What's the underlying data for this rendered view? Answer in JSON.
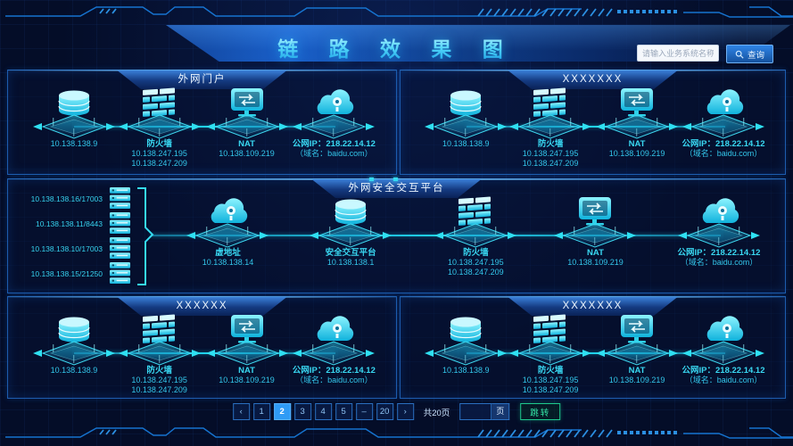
{
  "page": {
    "title": "链 路 效 果 图"
  },
  "search": {
    "placeholder": "请输入业务系统名称",
    "button_label": "查询",
    "icon": "search-icon"
  },
  "panels": [
    {
      "title": "外网门户",
      "nodes": [
        {
          "icon": "database",
          "name": "",
          "lines": [
            "10.138.138.9"
          ]
        },
        {
          "icon": "firewall",
          "name": "防火墙",
          "lines": [
            "10.138.247.195",
            "10.138.247.209"
          ]
        },
        {
          "icon": "nat",
          "name": "NAT",
          "lines": [
            "10.138.109.219"
          ]
        },
        {
          "icon": "cloud",
          "name": "公网IP：218.22.14.12",
          "lines": [
            "（域名：baidu.com）"
          ]
        }
      ]
    },
    {
      "title": "XXXXXXX",
      "nodes": [
        {
          "icon": "database",
          "name": "",
          "lines": [
            "10.138.138.9"
          ]
        },
        {
          "icon": "firewall",
          "name": "防火墙",
          "lines": [
            "10.138.247.195",
            "10.138.247.209"
          ]
        },
        {
          "icon": "nat",
          "name": "NAT",
          "lines": [
            "10.138.109.219"
          ]
        },
        {
          "icon": "cloud",
          "name": "公网IP：218.22.14.12",
          "lines": [
            "（域名：baidu.com）"
          ]
        }
      ]
    },
    {
      "title": "外网安全交互平台",
      "sources": [
        "10.138.138.16/17003",
        "10.138.138.11/8443",
        "10.138.138.10/17003",
        "10.138.138.15/21250"
      ],
      "nodes": [
        {
          "icon": "cloud",
          "name": "虚地址",
          "lines": [
            "10.138.138.14"
          ]
        },
        {
          "icon": "database",
          "name": "安全交互平台",
          "lines": [
            "10.138.138.1"
          ]
        },
        {
          "icon": "firewall",
          "name": "防火墙",
          "lines": [
            "10.138.247.195",
            "10.138.247.209"
          ]
        },
        {
          "icon": "nat",
          "name": "NAT",
          "lines": [
            "10.138.109.219"
          ]
        },
        {
          "icon": "cloud",
          "name": "公网IP：218.22.14.12",
          "lines": [
            "（域名：baidu.com）"
          ]
        }
      ]
    },
    {
      "title": "XXXXXX",
      "nodes": [
        {
          "icon": "database",
          "name": "",
          "lines": [
            "10.138.138.9"
          ]
        },
        {
          "icon": "firewall",
          "name": "防火墙",
          "lines": [
            "10.138.247.195",
            "10.138.247.209"
          ]
        },
        {
          "icon": "nat",
          "name": "NAT",
          "lines": [
            "10.138.109.219"
          ]
        },
        {
          "icon": "cloud",
          "name": "公网IP：218.22.14.12",
          "lines": [
            "（域名：baidu.com）"
          ]
        }
      ]
    },
    {
      "title": "XXXXXXX",
      "nodes": [
        {
          "icon": "database",
          "name": "",
          "lines": [
            "10.138.138.9"
          ]
        },
        {
          "icon": "firewall",
          "name": "防火墙",
          "lines": [
            "10.138.247.195",
            "10.138.247.209"
          ]
        },
        {
          "icon": "nat",
          "name": "NAT",
          "lines": [
            "10.138.109.219"
          ]
        },
        {
          "icon": "cloud",
          "name": "公网IP：218.22.14.12",
          "lines": [
            "（域名：baidu.com）"
          ]
        }
      ]
    }
  ],
  "pagination": {
    "prev": "‹",
    "pages": [
      "1",
      "2",
      "3",
      "4",
      "5",
      "–",
      "20"
    ],
    "active": "2",
    "next": "›",
    "total": "共20页",
    "input_value": "",
    "page_suffix": "页",
    "jump_label": "跳转"
  },
  "colors": {
    "accent_cyan": "#2fd8ee",
    "panel_border": "#1d5cae",
    "active_page": "#2f9bf5",
    "jump_green": "#35e6a8"
  }
}
